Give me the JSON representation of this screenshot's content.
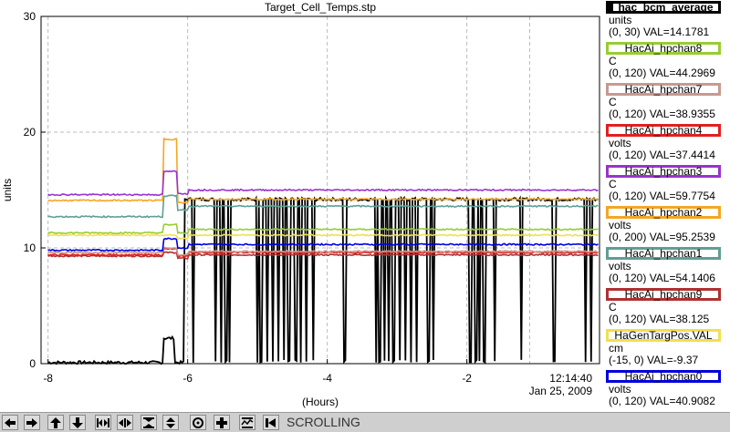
{
  "toolbar": {
    "buttons": [
      {
        "name": "scroll-left-button",
        "icon": "arrow-left-icon"
      },
      {
        "name": "scroll-right-button",
        "icon": "arrow-right-icon"
      },
      {
        "name": "scroll-up-button",
        "icon": "arrow-up-icon"
      },
      {
        "name": "scroll-down-button",
        "icon": "arrow-down-icon"
      },
      {
        "name": "zoom-in-horizontal-button",
        "icon": "zoom-in-horizontal-icon"
      },
      {
        "name": "zoom-out-horizontal-button",
        "icon": "zoom-out-horizontal-icon"
      },
      {
        "name": "zoom-in-vertical-button",
        "icon": "zoom-in-vertical-icon"
      },
      {
        "name": "zoom-out-vertical-button",
        "icon": "zoom-out-vertical-icon"
      },
      {
        "name": "center-button",
        "icon": "target-circle-icon"
      },
      {
        "name": "crosshair-button",
        "icon": "crosshair-icon"
      },
      {
        "name": "autoscale-button",
        "icon": "autoscale-icon"
      },
      {
        "name": "back-button",
        "icon": "rewind-icon"
      }
    ],
    "mode_label": "SCROLLING"
  },
  "legend": [
    {
      "name": "hac_bcm_average",
      "unit": "units",
      "range": "(0, 30) VAL=14.1781",
      "color": "#000000"
    },
    {
      "name": "HacAi_hpchan8",
      "unit": "C",
      "range": "(0, 120) VAL=44.2969",
      "color": "#99cc33"
    },
    {
      "name": "HacAi_hpchan7",
      "unit": "C",
      "range": "(0, 120) VAL=38.9355",
      "color": "#c8998f"
    },
    {
      "name": "HacAi_hpchan4",
      "unit": "volts",
      "range": "(0, 120) VAL=37.4414",
      "color": "#e02020"
    },
    {
      "name": "HacAi_hpchan3",
      "unit": "C",
      "range": "(0, 120) VAL=59.7754",
      "color": "#9933cc"
    },
    {
      "name": "HacAi_hpchan2",
      "unit": "volts",
      "range": "(0, 200) VAL=95.2539",
      "color": "#f5a623"
    },
    {
      "name": "HacAi_hpchan1",
      "unit": "volts",
      "range": "(0, 120) VAL=54.1406",
      "color": "#5f9e95"
    },
    {
      "name": "HacAi_hpchan9",
      "unit": "C",
      "range": "(0, 120) VAL=38.125",
      "color": "#b03030"
    },
    {
      "name": "HaGenTargPos.VAL",
      "unit": "cm",
      "range": "(-15, 0) VAL=-9.37",
      "color": "#f0e050"
    },
    {
      "name": "HacAi_hpchan0",
      "unit": "volts",
      "range": "(0, 120) VAL=40.9082",
      "color": "#0000dd"
    }
  ],
  "chart_data": {
    "type": "line",
    "title": "Target_Cell_Temps.stp",
    "xlabel": "(Hours)",
    "ylabel": "units",
    "xlim": [
      -8.1,
      -0.1
    ],
    "ylim": [
      0,
      30
    ],
    "x_ticks": [
      -8,
      -6,
      -4,
      -2
    ],
    "x_tick_labels": [
      "-8",
      "-6",
      "-4",
      "-2"
    ],
    "y_ticks": [
      0,
      10,
      20,
      30
    ],
    "y_tick_labels": [
      "0",
      "10",
      "20",
      "30"
    ],
    "time_label": "12:14:40",
    "date_label": "Jan 25, 2009",
    "grid": true,
    "spike_x": -6.3,
    "series": [
      {
        "name": "HacAi_hpchan3",
        "color": "#9933cc",
        "base_before": 14.6,
        "peak": 16.6,
        "base_after": 15.0
      },
      {
        "name": "HacAi_hpchan2",
        "color": "#f5a623",
        "base_before": 14.1,
        "peak": 19.4,
        "base_after": 14.2
      },
      {
        "name": "HacAi_hpchan1",
        "color": "#5f9e95",
        "base_before": 12.7,
        "peak": 14.5,
        "base_after": 13.6
      },
      {
        "name": "HacAi_hpchan8",
        "color": "#99cc33",
        "base_before": 11.3,
        "peak": 12.0,
        "base_after": 11.6
      },
      {
        "name": "HaGenTargPos.VAL",
        "color": "#f0e050",
        "base_before": 11.1,
        "peak": 11.1,
        "base_after": 11.1
      },
      {
        "name": "HacAi_hpchan0",
        "color": "#0000dd",
        "base_before": 9.8,
        "peak": 10.8,
        "base_after": 10.3
      },
      {
        "name": "HacAi_hpchan7",
        "color": "#c8998f",
        "base_before": 9.6,
        "peak": 10.0,
        "base_after": 9.7
      },
      {
        "name": "HacAi_hpchan4",
        "color": "#e02020",
        "base_before": 9.4,
        "peak": 9.9,
        "base_after": 9.6
      },
      {
        "name": "HacAi_hpchan9",
        "color": "#b03030",
        "base_before": 9.3,
        "peak": 9.6,
        "base_after": 9.4
      },
      {
        "name": "hac_bcm_average",
        "color": "#000000",
        "base_before": 0.1,
        "peak": 2.2,
        "base_after": 14.2,
        "dropouts": [
          -5.92,
          -5.6,
          -5.52,
          -5.45,
          -5.4,
          -5.0,
          -4.95,
          -4.86,
          -4.78,
          -4.7,
          -4.62,
          -4.55,
          -4.45,
          -4.38,
          -4.3,
          -4.2,
          -3.75,
          -3.3,
          -3.25,
          -3.18,
          -3.12,
          -3.05,
          -2.96,
          -2.88,
          -2.8,
          -2.72,
          -2.55,
          -2.48,
          -1.95,
          -1.87,
          -1.82,
          -1.75,
          -1.6,
          -1.22,
          -0.75,
          -0.3,
          -0.22
        ]
      }
    ]
  }
}
